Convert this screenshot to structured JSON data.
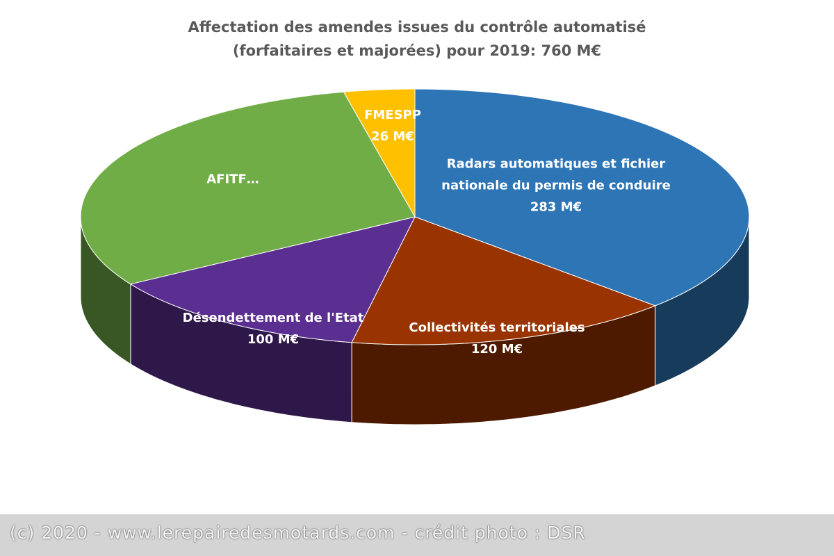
{
  "chart_data": {
    "type": "pie3d",
    "title": "Affectation des amendes issues du contrôle automatisé (forfaitaires et majorées) pour 2019: 760 M€",
    "categories": [
      "Radars automatiques et fichier nationale du permis de conduire",
      "Collectivités territoriales",
      "Désendettement de l'Etat",
      "AFITF…",
      "FMESPP"
    ],
    "values": [
      283,
      120,
      100,
      231,
      26
    ],
    "value_labels": [
      "283 M€",
      "120 M€",
      "100 M€",
      null,
      "26 M€"
    ],
    "colors": [
      "#2e75b6",
      "#993300",
      "#5b2e91",
      "#70ad47",
      "#ffc000"
    ]
  },
  "footer": "(c) 2020 - www.lerepairedesmotards.com  - crédit photo : DSR"
}
